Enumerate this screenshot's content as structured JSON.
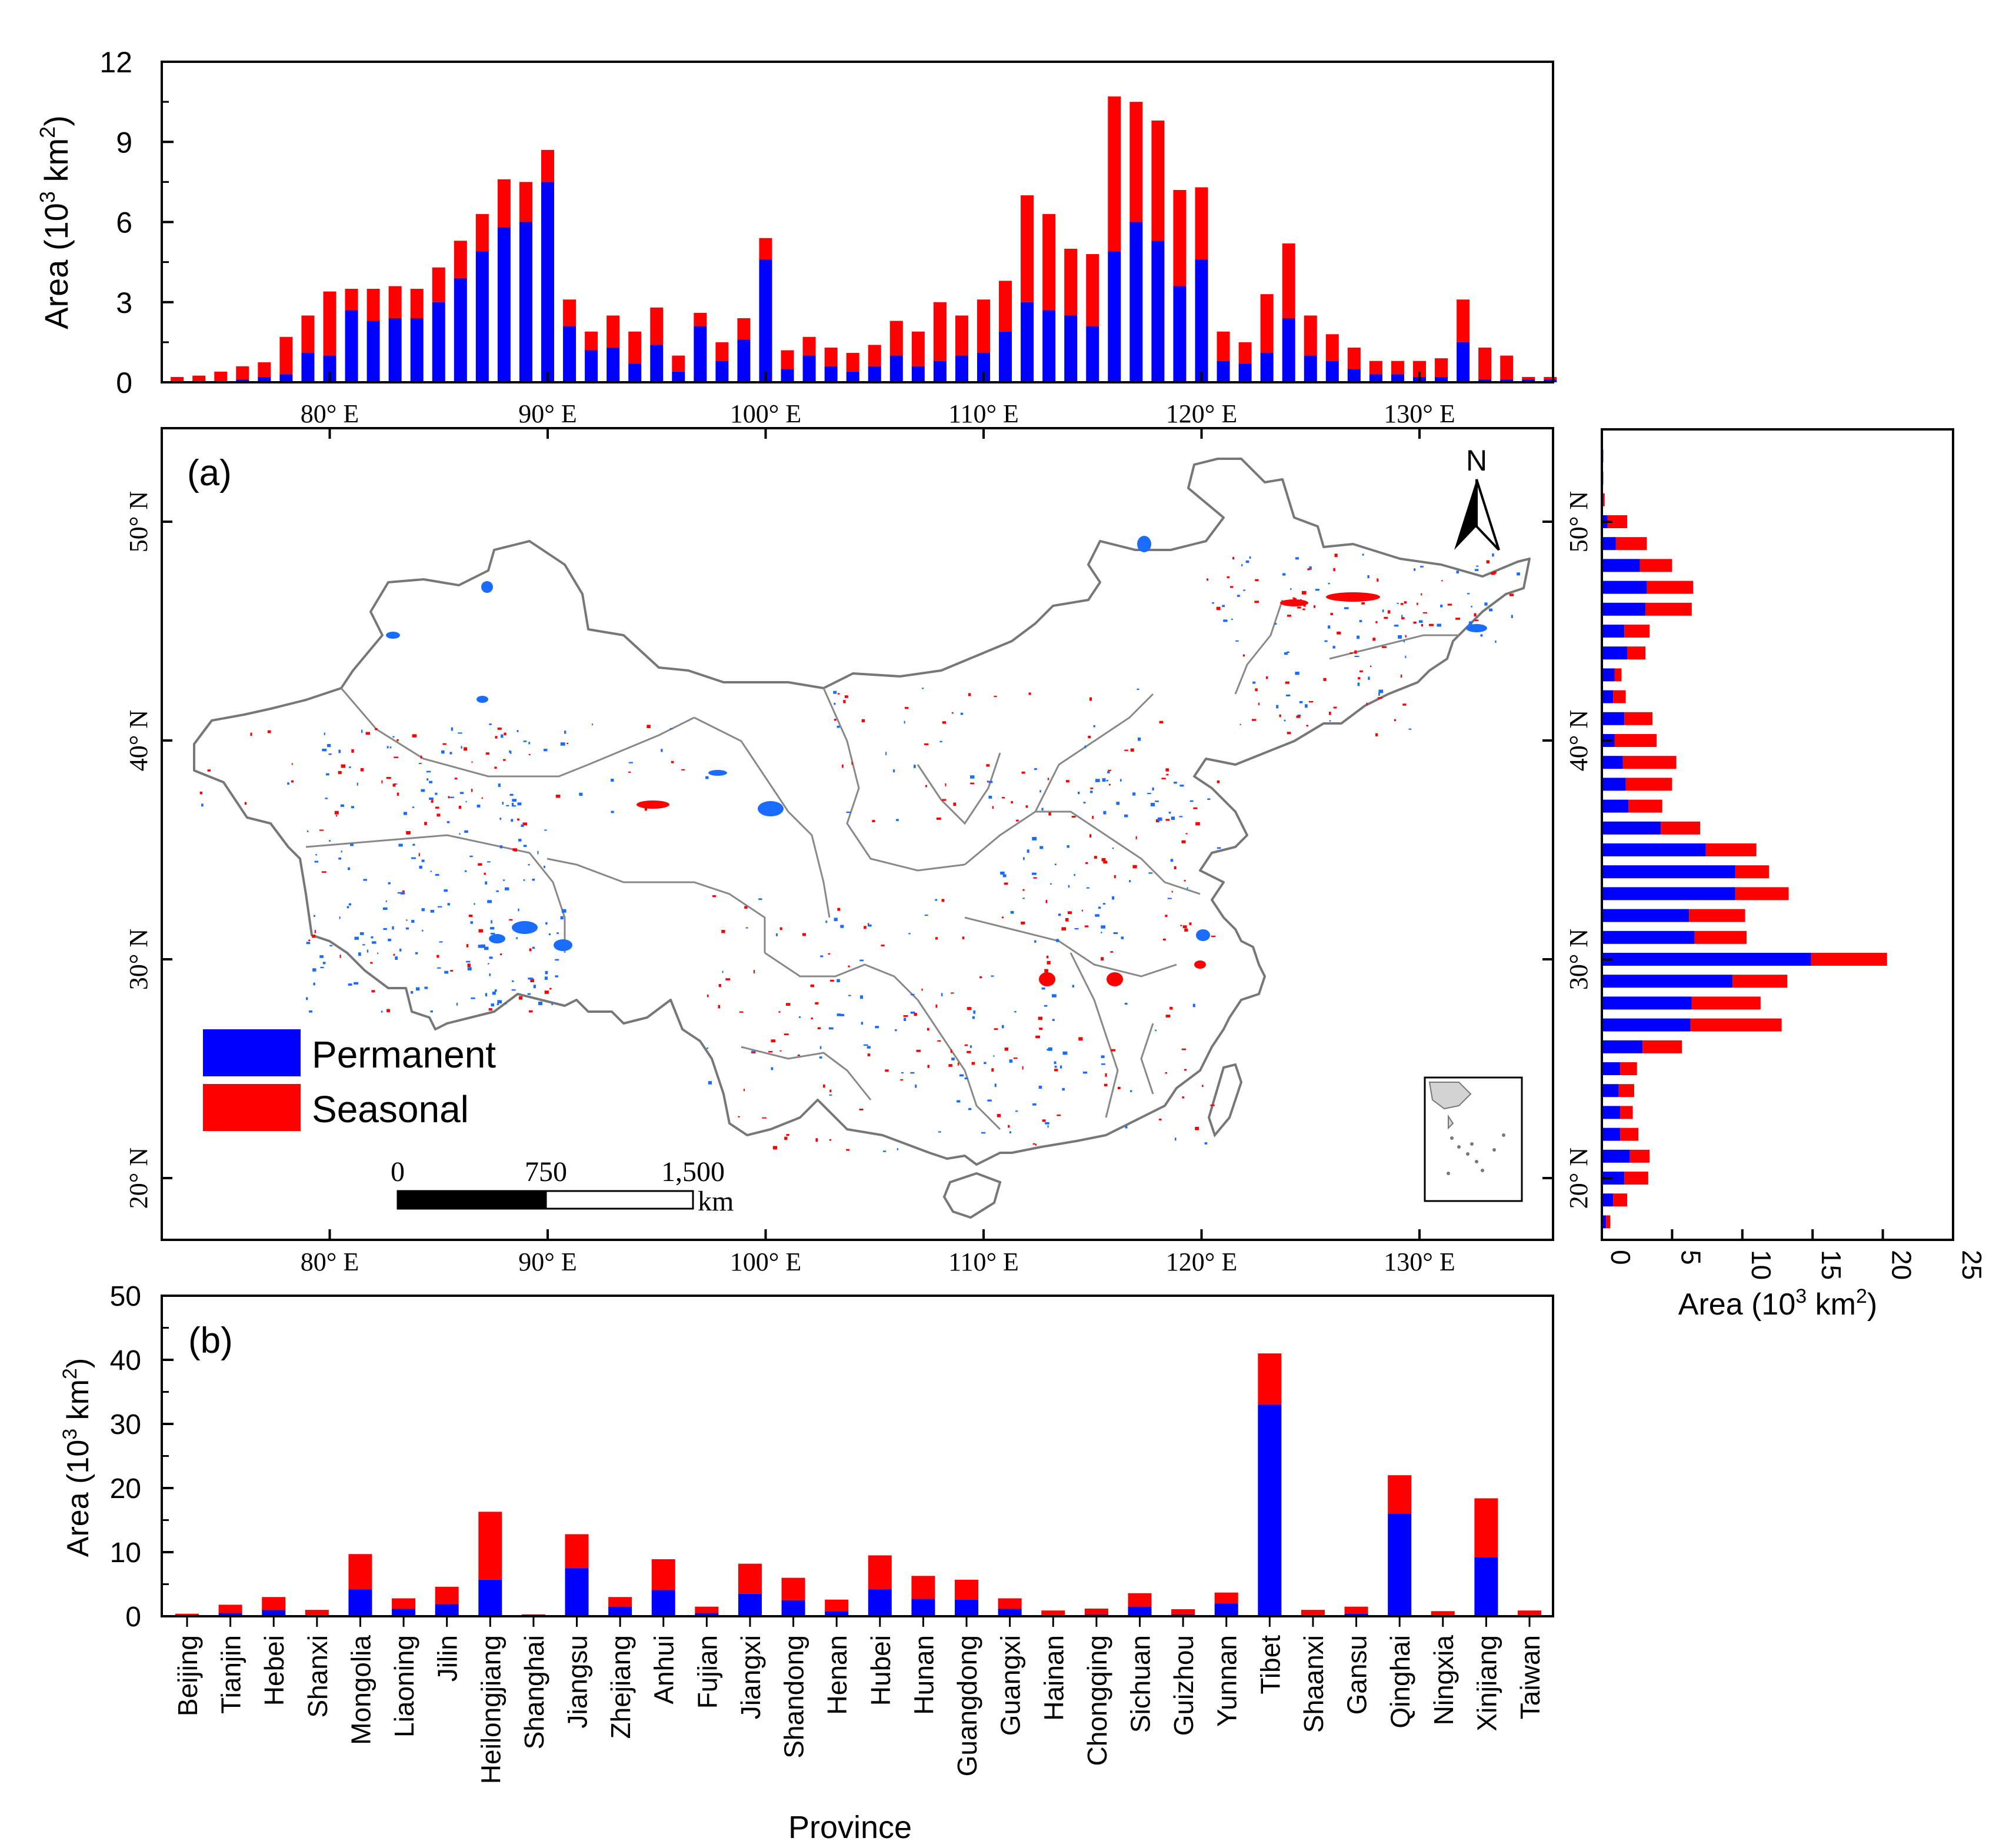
{
  "colors": {
    "permanent": "#0000ff",
    "seasonal": "#ff0000",
    "map_permanent": "#1a6cff"
  },
  "chart_data": [
    {
      "id": "top",
      "type": "bar",
      "stacked": true,
      "orientation": "vertical",
      "ylabel_prefix": "Area (10",
      "ylabel_sup": "3",
      "ylabel_mid": " km",
      "ylabel_sup2": "2",
      "ylabel_suffix": ")",
      "xlim": [
        72.5,
        136.5
      ],
      "ylim": [
        0,
        12
      ],
      "yticks": [
        "0",
        "3",
        "6",
        "9",
        "12"
      ],
      "ytick_values": [
        0,
        3,
        6,
        9,
        12
      ],
      "xticks": [
        "80° E",
        "90° E",
        "100° E",
        "110° E",
        "120° E",
        "130° E"
      ],
      "xtick_values": [
        80,
        90,
        100,
        110,
        120,
        130
      ],
      "x": [
        73,
        74,
        75,
        76,
        77,
        78,
        79,
        80,
        81,
        82,
        83,
        84,
        85,
        86,
        87,
        88,
        89,
        90,
        91,
        92,
        93,
        94,
        95,
        96,
        97,
        98,
        99,
        100,
        101,
        102,
        103,
        104,
        105,
        106,
        107,
        108,
        109,
        110,
        111,
        112,
        113,
        114,
        115,
        116,
        117,
        118,
        119,
        120,
        121,
        122,
        123,
        124,
        125,
        126,
        127,
        128,
        129,
        130,
        131,
        132,
        133,
        134,
        135,
        136
      ],
      "series": [
        {
          "name": "Permanent",
          "values": [
            0.05,
            0.05,
            0.05,
            0.1,
            0.2,
            0.3,
            1.1,
            1.0,
            2.7,
            2.3,
            2.4,
            2.4,
            3.0,
            3.9,
            4.9,
            5.8,
            6.0,
            7.5,
            2.1,
            1.2,
            1.3,
            0.7,
            1.4,
            0.4,
            2.1,
            0.8,
            1.6,
            4.6,
            0.5,
            1.0,
            0.6,
            0.4,
            0.6,
            1.0,
            0.6,
            0.8,
            1.0,
            1.1,
            1.9,
            3.0,
            2.7,
            2.5,
            2.1,
            4.9,
            6.0,
            5.3,
            3.6,
            4.6,
            0.8,
            0.7,
            1.1,
            2.4,
            1.0,
            0.8,
            0.5,
            0.3,
            0.3,
            0.2,
            0.2,
            1.5,
            0.1,
            0.1,
            0.1,
            0.1
          ]
        },
        {
          "name": "Seasonal",
          "values": [
            0.15,
            0.2,
            0.35,
            0.5,
            0.55,
            1.4,
            1.4,
            2.4,
            0.8,
            1.2,
            1.2,
            1.1,
            1.3,
            1.4,
            1.4,
            1.8,
            1.5,
            1.2,
            1.0,
            0.7,
            1.2,
            1.2,
            1.4,
            0.6,
            0.5,
            0.7,
            0.8,
            0.8,
            0.7,
            0.7,
            0.7,
            0.7,
            0.8,
            1.3,
            1.3,
            2.2,
            1.5,
            2.0,
            1.9,
            4.0,
            3.6,
            2.5,
            2.7,
            5.8,
            4.5,
            4.5,
            3.6,
            2.7,
            1.1,
            0.8,
            2.2,
            2.8,
            1.5,
            1.0,
            0.8,
            0.5,
            0.5,
            0.6,
            0.7,
            1.6,
            1.2,
            0.9,
            0.1,
            0.1
          ]
        }
      ]
    },
    {
      "id": "right",
      "type": "bar",
      "stacked": true,
      "orientation": "horizontal",
      "xlabel_prefix": "Area (10",
      "xlabel_sup": "3",
      "xlabel_mid": " km",
      "xlabel_sup2": "2",
      "xlabel_suffix": ")",
      "xlim": [
        0,
        25
      ],
      "xticks": [
        "0",
        "5",
        "10",
        "15",
        "20",
        "25"
      ],
      "xtick_values": [
        0,
        5,
        10,
        15,
        20,
        25
      ],
      "ylim": [
        17,
        55
      ],
      "yticks": [
        "20° N",
        "30° N",
        "40° N",
        "50° N"
      ],
      "ytick_values": [
        20,
        30,
        40,
        50
      ],
      "lat": [
        53,
        52,
        51,
        50,
        49,
        48,
        47,
        46,
        45,
        44,
        43,
        42,
        41,
        40,
        39,
        38,
        37,
        36,
        35,
        34,
        33,
        32,
        31,
        30,
        29,
        28,
        27,
        26,
        25,
        24,
        23,
        22,
        21,
        20,
        19,
        18
      ],
      "series": [
        {
          "name": "Permanent",
          "values": [
            0.1,
            0.1,
            0.1,
            0.4,
            1.0,
            2.7,
            3.2,
            3.1,
            1.6,
            1.8,
            0.9,
            0.8,
            1.6,
            0.9,
            1.5,
            1.7,
            1.9,
            4.2,
            7.4,
            9.5,
            9.5,
            6.2,
            6.6,
            14.9,
            9.3,
            6.4,
            6.3,
            2.9,
            1.3,
            1.2,
            1.3,
            1.3,
            2.0,
            1.6,
            0.8,
            0.3
          ]
        },
        {
          "name": "Seasonal",
          "values": [
            0.0,
            0.0,
            0.1,
            1.4,
            2.2,
            2.3,
            3.3,
            3.3,
            1.8,
            1.3,
            0.5,
            0.9,
            2.0,
            3.0,
            3.8,
            3.3,
            2.4,
            2.8,
            3.6,
            2.4,
            3.8,
            4.0,
            3.7,
            5.4,
            3.9,
            4.9,
            6.5,
            2.8,
            1.2,
            1.1,
            0.9,
            1.3,
            1.4,
            1.7,
            1.0,
            0.3
          ]
        }
      ]
    },
    {
      "id": "bottom",
      "type": "bar",
      "stacked": true,
      "orientation": "vertical",
      "panel_label": "(b)",
      "xlabel": "Province",
      "ylabel_prefix": "Area (10",
      "ylabel_sup": "3",
      "ylabel_mid": " km",
      "ylabel_sup2": "2",
      "ylabel_suffix": ")",
      "ylim": [
        0,
        50
      ],
      "yticks": [
        "0",
        "10",
        "20",
        "30",
        "40",
        "50"
      ],
      "ytick_values": [
        0,
        10,
        20,
        30,
        40,
        50
      ],
      "categories": [
        "Beijing",
        "Tianjin",
        "Hebei",
        "Shanxi",
        "Mongolia",
        "Liaoning",
        "Jilin",
        "Heilongjiang",
        "Shanghai",
        "Jiangsu",
        "Zhejiang",
        "Anhui",
        "Fujian",
        "Jiangxi",
        "Shandong",
        "Henan",
        "Hubei",
        "Hunan",
        "Guangdong",
        "Guangxi",
        "Hainan",
        "Chongqing",
        "Sichuan",
        "Guizhou",
        "Yunnan",
        "Tibet",
        "Shaanxi",
        "Gansu",
        "Qinghai",
        "Ningxia",
        "Xinjiang",
        "Taiwan"
      ],
      "series": [
        {
          "name": "Permanent",
          "values": [
            0.1,
            0.5,
            1.0,
            0.2,
            4.2,
            1.2,
            1.9,
            5.7,
            0.1,
            7.5,
            1.5,
            4.1,
            0.5,
            3.5,
            2.5,
            0.8,
            4.2,
            2.7,
            2.6,
            1.2,
            0.2,
            0.3,
            1.5,
            0.3,
            2.0,
            33.0,
            0.2,
            0.4,
            16.0,
            0.2,
            9.2,
            0.2
          ]
        },
        {
          "name": "Seasonal",
          "values": [
            0.3,
            1.3,
            2.0,
            0.8,
            5.5,
            1.6,
            2.7,
            10.6,
            0.2,
            5.3,
            1.5,
            4.8,
            1.0,
            4.7,
            3.5,
            1.8,
            5.3,
            3.6,
            3.1,
            1.6,
            0.7,
            0.9,
            2.1,
            0.8,
            1.7,
            8.0,
            0.8,
            1.1,
            6.0,
            0.6,
            9.2,
            0.7
          ]
        }
      ]
    }
  ],
  "map": {
    "panel_label": "(a)",
    "north_label": "N",
    "legend": {
      "permanent_label": "Permanent",
      "seasonal_label": "Seasonal"
    },
    "scale": {
      "tick_0": "0",
      "tick_1": "750",
      "tick_2": "1,500",
      "unit": "km"
    },
    "xticks": [
      "80° E",
      "90° E",
      "100° E",
      "110° E",
      "120° E",
      "130° E"
    ],
    "xtick_values": [
      80,
      90,
      100,
      110,
      120,
      130
    ],
    "yticks": [
      "20° N",
      "30° N",
      "40° N",
      "50° N"
    ],
    "ytick_values": [
      20,
      30,
      40,
      50
    ]
  }
}
